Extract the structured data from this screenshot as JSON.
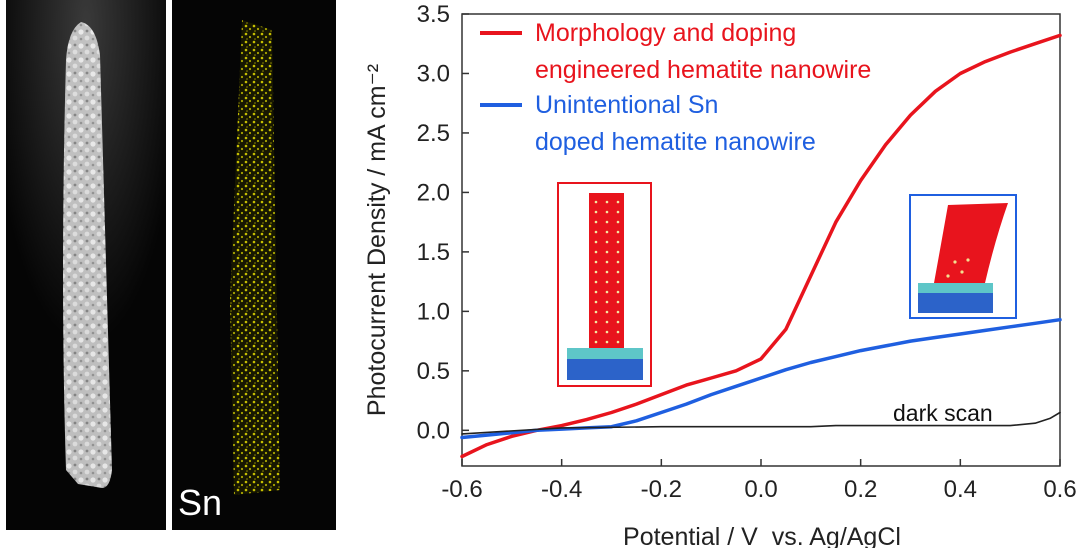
{
  "images": {
    "left_panel": {
      "icon": "tem-nanowire-image"
    },
    "right_panel": {
      "icon": "sn-eds-map-image",
      "label": "Sn"
    }
  },
  "chart_data": {
    "type": "line",
    "title": "",
    "xlabel": "Potential / V  vs. Ag/AgCl",
    "ylabel": "Photocurrent Density / mA cm⁻²",
    "xlim": [
      -0.6,
      0.6
    ],
    "ylim": [
      -0.3,
      3.5
    ],
    "xticks": [
      "-0.6",
      "-0.4",
      "-0.2",
      "0.0",
      "0.2",
      "0.4",
      "0.6"
    ],
    "yticks": [
      "0.0",
      "0.5",
      "1.0",
      "1.5",
      "2.0",
      "2.5",
      "3.0",
      "3.5"
    ],
    "legend_position": "top-left",
    "series": [
      {
        "name": "Morphology and doping engineered hematite nanowire",
        "name_lines": [
          "Morphology and doping",
          "engineered hematite nanowire"
        ],
        "color": "#e8141d",
        "x": [
          -0.6,
          -0.55,
          -0.5,
          -0.45,
          -0.4,
          -0.35,
          -0.3,
          -0.25,
          -0.2,
          -0.15,
          -0.1,
          -0.05,
          0.0,
          0.05,
          0.1,
          0.15,
          0.2,
          0.25,
          0.3,
          0.35,
          0.4,
          0.45,
          0.5,
          0.55,
          0.6
        ],
        "y": [
          -0.22,
          -0.12,
          -0.05,
          0.0,
          0.04,
          0.09,
          0.15,
          0.22,
          0.3,
          0.38,
          0.44,
          0.5,
          0.6,
          0.85,
          1.3,
          1.75,
          2.1,
          2.4,
          2.65,
          2.85,
          3.0,
          3.1,
          3.18,
          3.25,
          3.32
        ]
      },
      {
        "name": "Unintentional Sn doped hematite nanowire",
        "name_lines": [
          "Unintentional Sn",
          "doped hematite nanowire"
        ],
        "color": "#1f5fe0",
        "x": [
          -0.6,
          -0.55,
          -0.5,
          -0.45,
          -0.4,
          -0.35,
          -0.3,
          -0.25,
          -0.2,
          -0.15,
          -0.1,
          -0.05,
          0.0,
          0.05,
          0.1,
          0.15,
          0.2,
          0.25,
          0.3,
          0.35,
          0.4,
          0.45,
          0.5,
          0.55,
          0.6
        ],
        "y": [
          -0.06,
          -0.04,
          -0.02,
          0.0,
          0.01,
          0.02,
          0.03,
          0.08,
          0.15,
          0.22,
          0.3,
          0.37,
          0.44,
          0.51,
          0.57,
          0.62,
          0.67,
          0.71,
          0.75,
          0.78,
          0.81,
          0.84,
          0.87,
          0.9,
          0.93
        ]
      },
      {
        "name": "dark scan",
        "color": "#222222",
        "x": [
          -0.6,
          -0.4,
          -0.2,
          0.0,
          0.1,
          0.15,
          0.3,
          0.4,
          0.5,
          0.55,
          0.58,
          0.6
        ],
        "y": [
          -0.03,
          0.02,
          0.03,
          0.03,
          0.03,
          0.04,
          0.04,
          0.04,
          0.04,
          0.06,
          0.1,
          0.15
        ]
      }
    ],
    "annotations": [
      {
        "text": "dark scan",
        "color": "#111111"
      }
    ],
    "insets": [
      {
        "icon": "straight-nanowire-inset",
        "border_color": "#e8141d"
      },
      {
        "icon": "bent-nanowire-inset",
        "border_color": "#1f5fe0"
      }
    ]
  }
}
